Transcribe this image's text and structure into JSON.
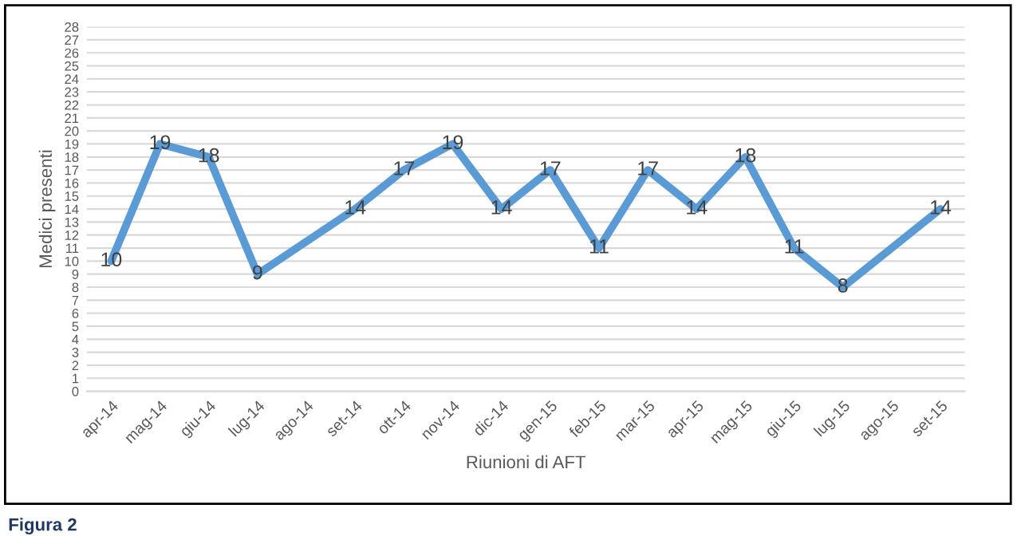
{
  "chart_data": {
    "type": "line",
    "categories": [
      "apr-14",
      "mag-14",
      "giu-14",
      "lug-14",
      "ago-14",
      "set-14",
      "ott-14",
      "nov-14",
      "dic-14",
      "gen-15",
      "feb-15",
      "mar-15",
      "apr-15",
      "mag-15",
      "giu-15",
      "lug-15",
      "ago-15",
      "set-15"
    ],
    "series": [
      {
        "color": "#5b9bd5",
        "values": [
          10,
          19,
          18,
          9,
          null,
          14,
          17,
          19,
          14,
          17,
          11,
          17,
          14,
          18,
          11,
          8,
          null,
          14
        ]
      }
    ],
    "xlabel": "Riunioni di AFT",
    "ylabel": "Medici presenti",
    "ylim": [
      0,
      28
    ],
    "yticks": [
      0,
      1,
      2,
      3,
      4,
      5,
      6,
      7,
      8,
      9,
      10,
      11,
      12,
      13,
      14,
      15,
      16,
      17,
      18,
      19,
      20,
      21,
      22,
      23,
      24,
      25,
      26,
      27,
      28
    ],
    "grid": "y",
    "legend": false,
    "marker": "none",
    "line_style": "solid",
    "data_labels": true,
    "annotations": [
      "Figura 2"
    ]
  }
}
